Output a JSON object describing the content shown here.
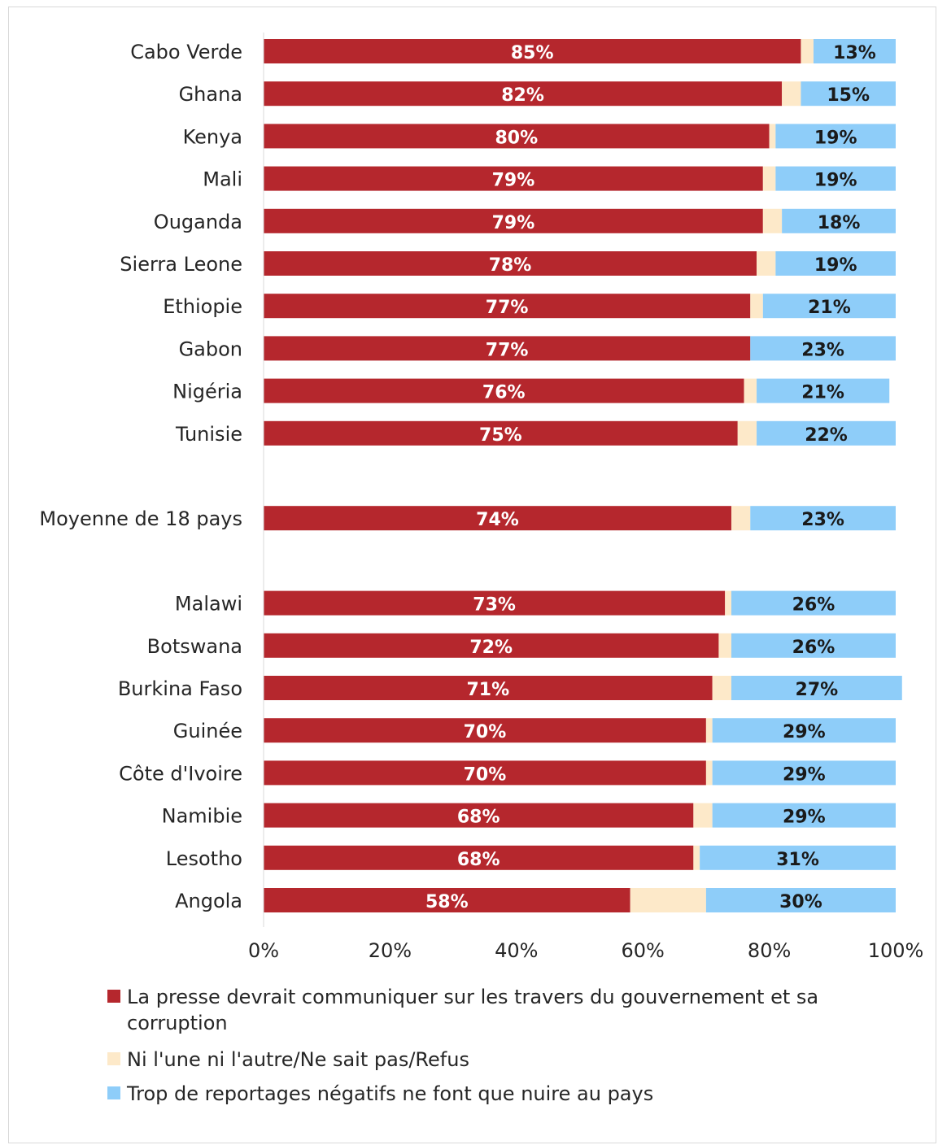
{
  "chart_data": {
    "type": "bar",
    "orientation": "horizontal",
    "stacked": true,
    "categories": [
      "Cabo Verde",
      "Ghana",
      "Kenya",
      "Mali",
      "Ouganda",
      "Sierra Leone",
      "Ethiopie",
      "Gabon",
      "Nigéria",
      "Tunisie",
      "Moyenne de 18 pays",
      "Malawi",
      "Botswana",
      "Burkina Faso",
      "Guinée",
      "Côte d'Ivoire",
      "Namibie",
      "Lesotho",
      "Angola"
    ],
    "series": [
      {
        "name": "La presse devrait communiquer sur les travers du gouvernement et sa corruption",
        "color": "#b5272d",
        "values": [
          85,
          82,
          80,
          79,
          79,
          78,
          77,
          77,
          76,
          75,
          74,
          73,
          72,
          71,
          70,
          70,
          68,
          68,
          58
        ],
        "labels": [
          "85%",
          "82%",
          "80%",
          "79%",
          "79%",
          "78%",
          "77%",
          "77%",
          "76%",
          "75%",
          "74%",
          "73%",
          "72%",
          "71%",
          "70%",
          "70%",
          "68%",
          "68%",
          "58%"
        ]
      },
      {
        "name": "Ni l'une ni l'autre/Ne sait pas/Refus",
        "color": "#fde9c9",
        "values": [
          2,
          3,
          1,
          2,
          3,
          3,
          2,
          0,
          2,
          3,
          3,
          1,
          2,
          3,
          1,
          1,
          3,
          1,
          12
        ],
        "labels": []
      },
      {
        "name": "Trop de reportages négatifs ne font que nuire au pays",
        "color": "#8ecdf9",
        "values": [
          13,
          15,
          19,
          19,
          18,
          19,
          21,
          23,
          21,
          22,
          23,
          26,
          26,
          27,
          29,
          29,
          29,
          31,
          30
        ],
        "labels": [
          "13%",
          "15%",
          "19%",
          "19%",
          "18%",
          "19%",
          "21%",
          "23%",
          "21%",
          "22%",
          "23%",
          "26%",
          "26%",
          "27%",
          "29%",
          "29%",
          "29%",
          "31%",
          "30%"
        ]
      }
    ],
    "xlim": [
      0,
      100
    ],
    "x_ticks": [
      "0%",
      "20%",
      "40%",
      "60%",
      "80%",
      "100%"
    ],
    "title": "",
    "xlabel": "",
    "ylabel": "",
    "grid": false,
    "legend_position": "bottom"
  }
}
